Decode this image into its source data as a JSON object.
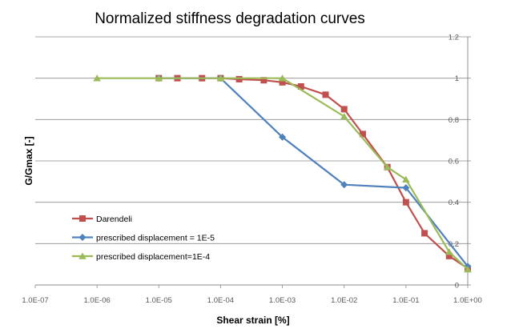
{
  "chart_data": {
    "type": "line",
    "title": "Normalized stiffness degradation curves",
    "xlabel": "Shear strain [%]",
    "ylabel": "G/Gmax [-]",
    "xscale": "log",
    "xlim": [
      1e-07,
      1
    ],
    "ylim": [
      0,
      1.2
    ],
    "x_tick_labels": [
      "1.0E-07",
      "1.0E-06",
      "1.0E-05",
      "1.0E-04",
      "1.0E-03",
      "1.0E-02",
      "1.0E-01",
      "1.0E+00"
    ],
    "y_tick_labels": [
      "0",
      "0.2",
      "0.4",
      "0.6",
      "0.8",
      "1",
      "1.2"
    ],
    "grid": "horizontal",
    "y_axis_side": "right",
    "legend_position": "bottom-left",
    "series": [
      {
        "name": "Darendeli",
        "color": "#c0504d",
        "marker": "square",
        "x": [
          1e-05,
          2e-05,
          5e-05,
          0.0001,
          0.0002,
          0.0005,
          0.001,
          0.002,
          0.005,
          0.01,
          0.02,
          0.05,
          0.1,
          0.2,
          0.5,
          1
        ],
        "y": [
          1.0,
          1.0,
          1.0,
          1.0,
          0.995,
          0.99,
          0.98,
          0.96,
          0.92,
          0.85,
          0.73,
          0.57,
          0.4,
          0.25,
          0.14,
          0.08
        ]
      },
      {
        "name": "prescribed displacement = 1E-5",
        "color": "#4f81bd",
        "marker": "diamond",
        "x": [
          1e-05,
          0.0001,
          0.001,
          0.01,
          0.1,
          1
        ],
        "y": [
          1.0,
          1.0,
          0.715,
          0.485,
          0.47,
          0.09
        ]
      },
      {
        "name": "prescribed displacement=1E-4",
        "color": "#9bbb59",
        "marker": "triangle",
        "x": [
          1e-06,
          1e-05,
          0.0001,
          0.001,
          0.01,
          0.05,
          0.1,
          0.5,
          1
        ],
        "y": [
          1.0,
          1.0,
          1.0,
          1.0,
          0.815,
          0.57,
          0.51,
          0.16,
          0.075
        ]
      }
    ]
  }
}
